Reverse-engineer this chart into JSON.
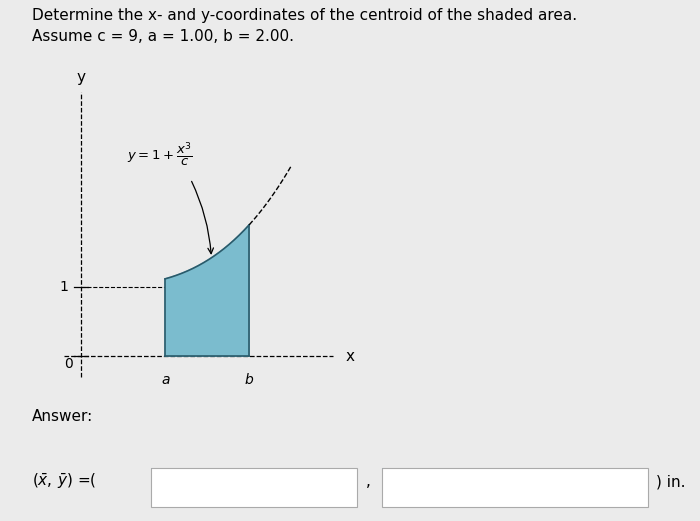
{
  "title_line1": "Determine the x- and y-coordinates of the centroid of the shaded area.",
  "title_line2": "Assume c = 9, a = 1.00, b = 2.00.",
  "bg_color": "#ebebeb",
  "a_val": 1.0,
  "b_val": 2.0,
  "c_val": 9,
  "shaded_color": "#7bbcce",
  "shaded_alpha": 1.0,
  "answer_label": "Answer:",
  "box_color": "#2e86c1",
  "xlabel": "x",
  "ylabel": "y",
  "tick_1_label": "1",
  "tick_0_label": "0",
  "a_label": "a",
  "b_label": "b"
}
